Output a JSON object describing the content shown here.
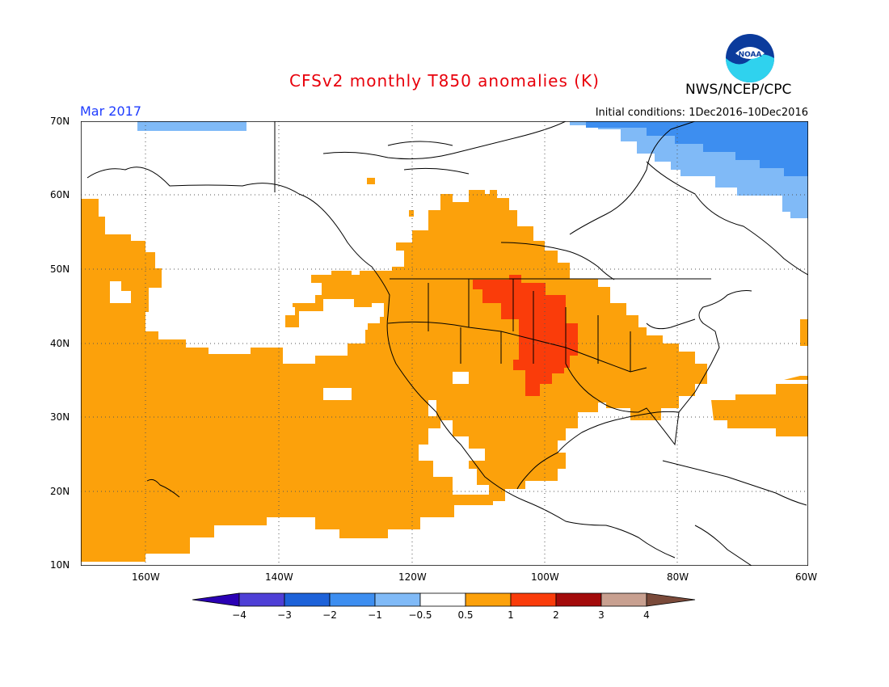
{
  "title": "CFSv2 monthly T850 anomalies (K)",
  "agency": "NWS/NCEP/CPC",
  "logo_text": "NOAA",
  "period": "Mar 2017",
  "initial_conditions": "Initial conditions: 1Dec2016–10Dec2016",
  "lat_labels": [
    "70N",
    "60N",
    "50N",
    "40N",
    "30N",
    "20N",
    "10N"
  ],
  "lon_labels": [
    "160W",
    "140W",
    "120W",
    "100W",
    "80W",
    "60W"
  ],
  "colorbar": {
    "labels": [
      "−4",
      "−3",
      "−2",
      "−1",
      "−0.5",
      "0.5",
      "1",
      "2",
      "3",
      "4"
    ],
    "colors": [
      "#2a00b4",
      "#4e3fd6",
      "#1d62d9",
      "#3d8ef0",
      "#80baf7",
      "#ffffff",
      "#fca10b",
      "#fa3c0a",
      "#a30a0a",
      "#c8a090",
      "#7a4a3a"
    ]
  },
  "colors": {
    "title": "#e8000b",
    "period": "#1e3cff",
    "warm_1": "#fca10b",
    "warm_2": "#fa3c0a",
    "cool_1": "#80baf7",
    "cool_2": "#3d8ef0"
  }
}
